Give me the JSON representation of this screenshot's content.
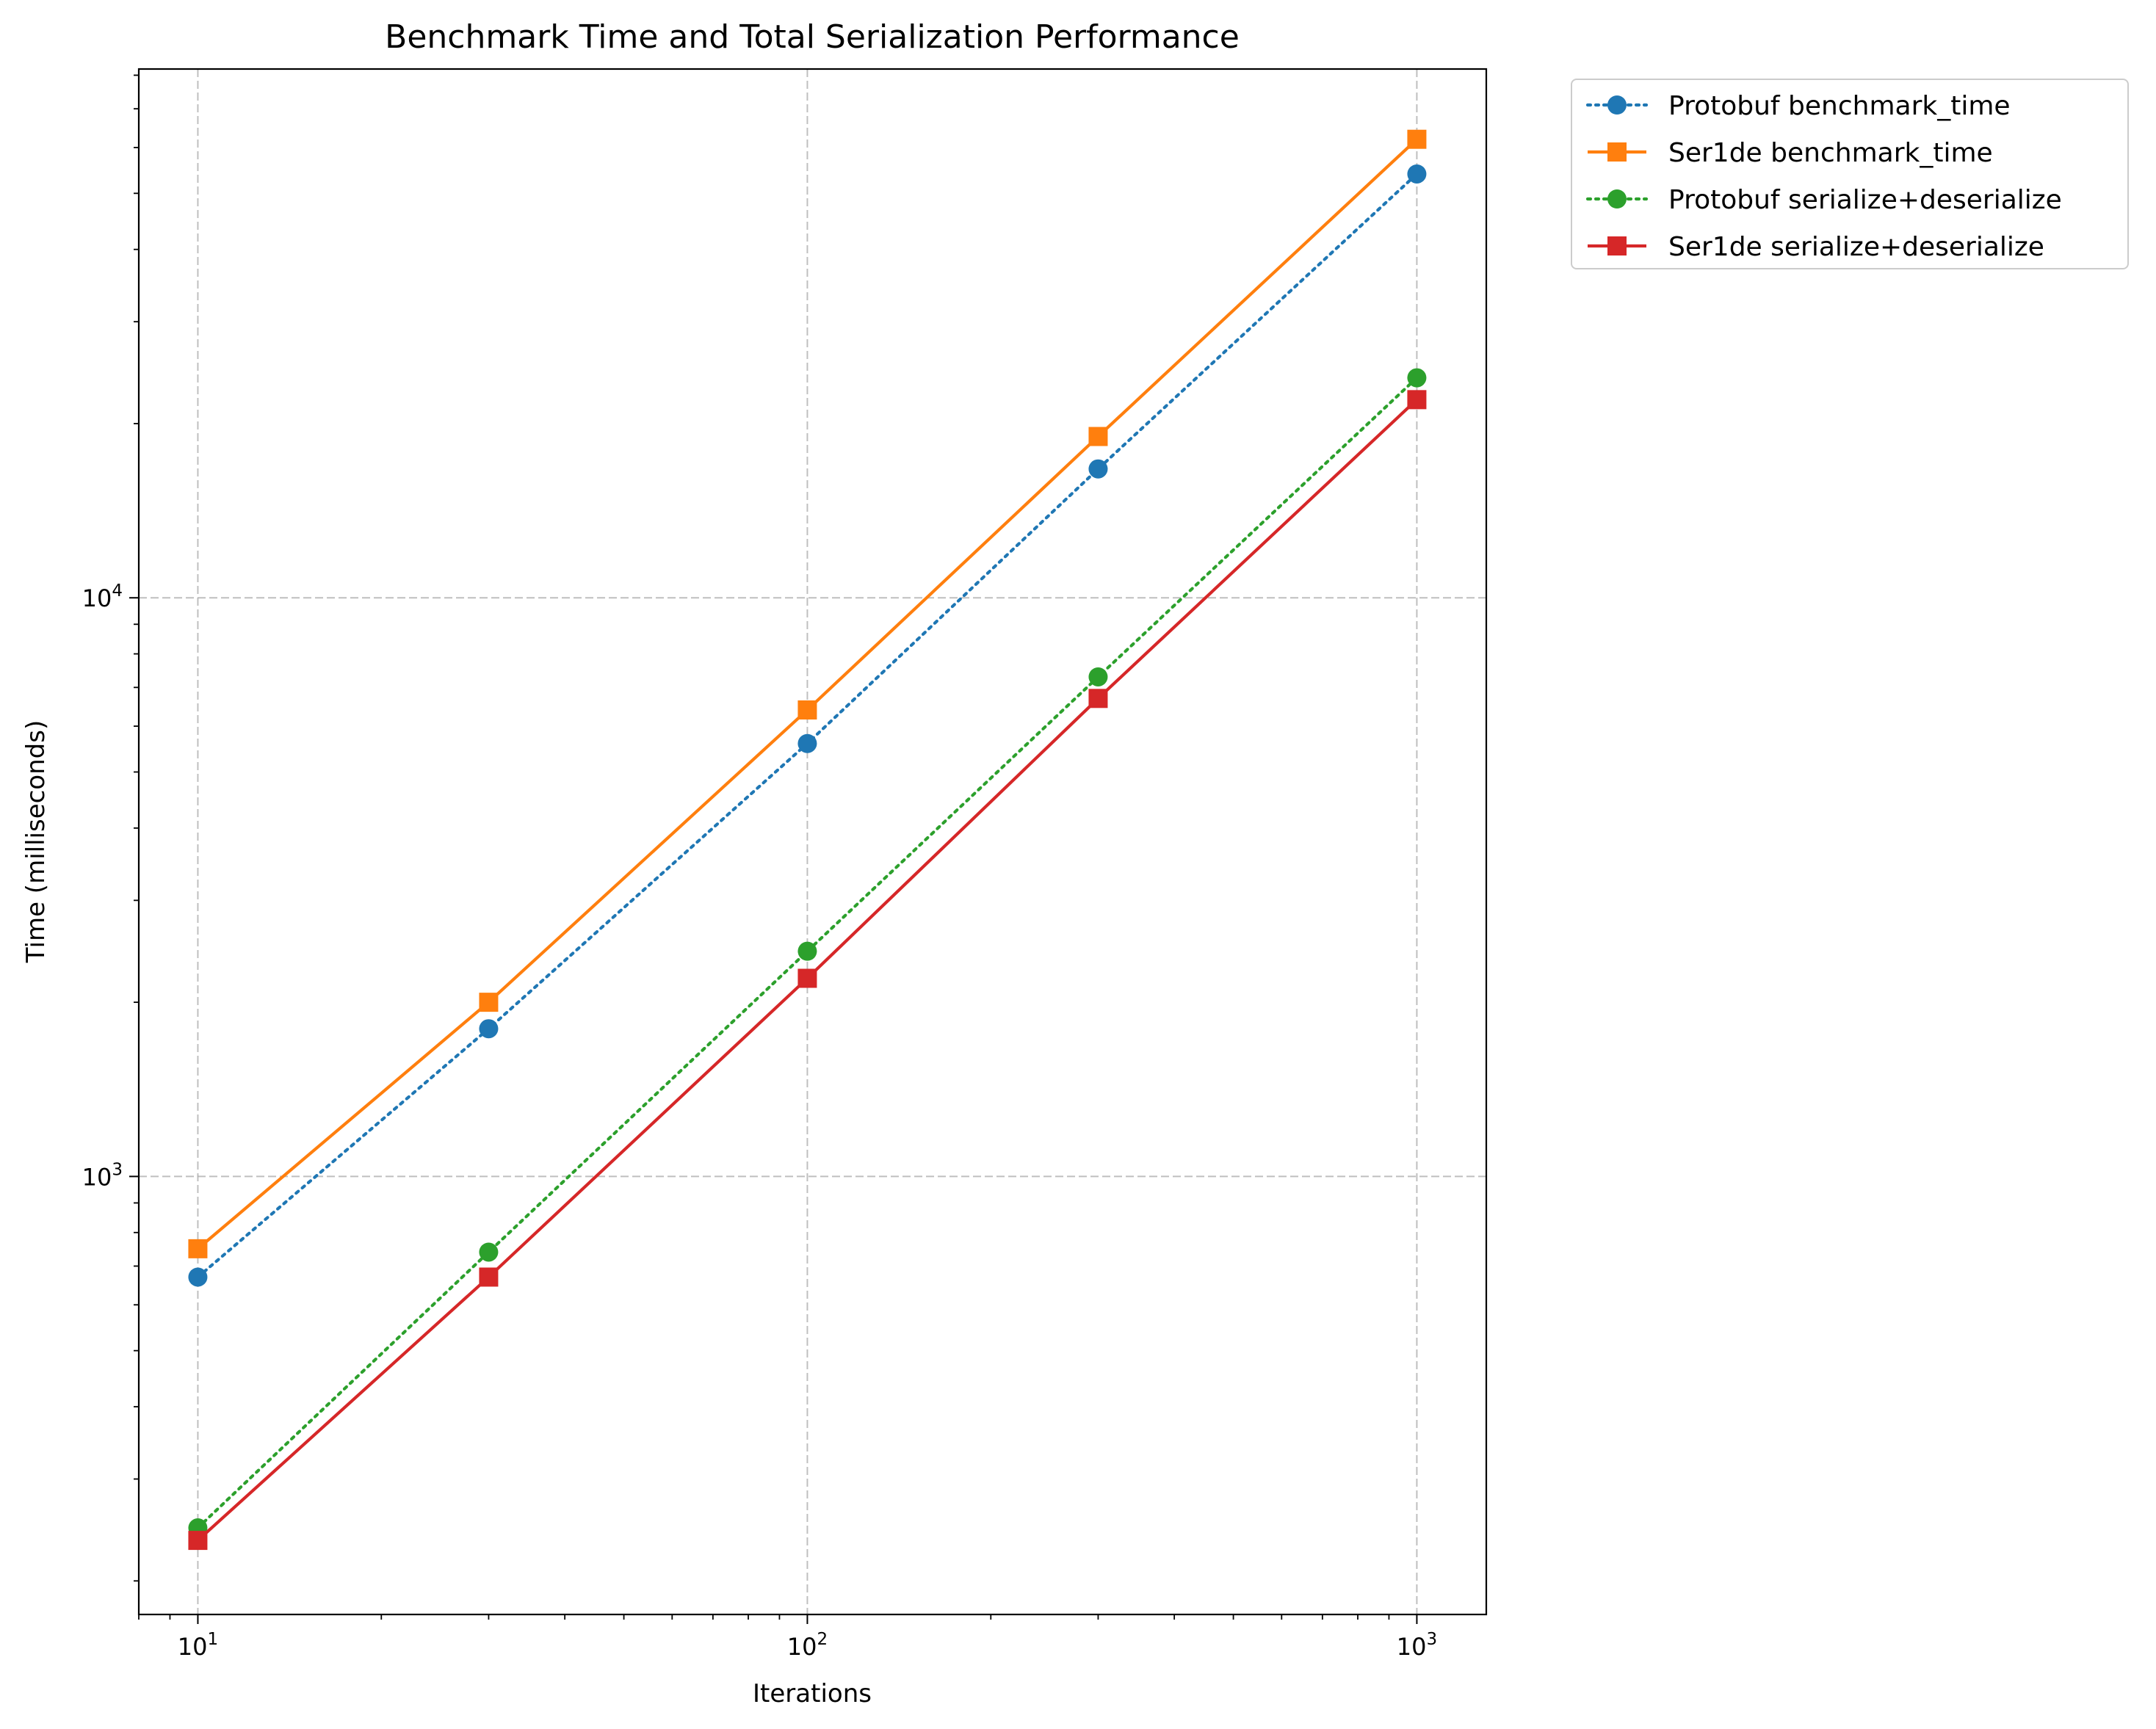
{
  "chart_data": {
    "type": "line",
    "title": "Benchmark Time and Total Serialization Performance",
    "xlabel": "Iterations",
    "ylabel": "Time (milliseconds)",
    "xscale": "log",
    "yscale": "log",
    "xlim": [
      8,
      1300
    ],
    "ylim": [
      175,
      82000
    ],
    "grid": true,
    "legend_position": "outside-top-right",
    "x": [
      10,
      30,
      100,
      300,
      1000
    ],
    "x_ticks": [
      {
        "value": 10,
        "base": "10",
        "exp": "1"
      },
      {
        "value": 100,
        "base": "10",
        "exp": "2"
      },
      {
        "value": 1000,
        "base": "10",
        "exp": "3"
      }
    ],
    "y_ticks": [
      {
        "value": 1000,
        "base": "10",
        "exp": "3"
      },
      {
        "value": 10000,
        "base": "10",
        "exp": "4"
      }
    ],
    "series": [
      {
        "name": "Protobuf benchmark_time",
        "color": "#1f77b4",
        "line_style": "dotted",
        "marker": "circle",
        "values": [
          670,
          1800,
          5600,
          16700,
          54000
        ]
      },
      {
        "name": "Ser1de benchmark_time",
        "color": "#ff7f0e",
        "line_style": "solid",
        "marker": "square",
        "values": [
          750,
          2000,
          6400,
          19000,
          62000
        ]
      },
      {
        "name": "Protobuf serialize+deserialize",
        "color": "#2ca02c",
        "line_style": "dotted",
        "marker": "circle",
        "values": [
          247,
          740,
          2450,
          7300,
          24000
        ]
      },
      {
        "name": "Ser1de serialize+deserialize",
        "color": "#d62728",
        "line_style": "solid",
        "marker": "square",
        "values": [
          235,
          670,
          2200,
          6700,
          22000
        ]
      }
    ]
  }
}
